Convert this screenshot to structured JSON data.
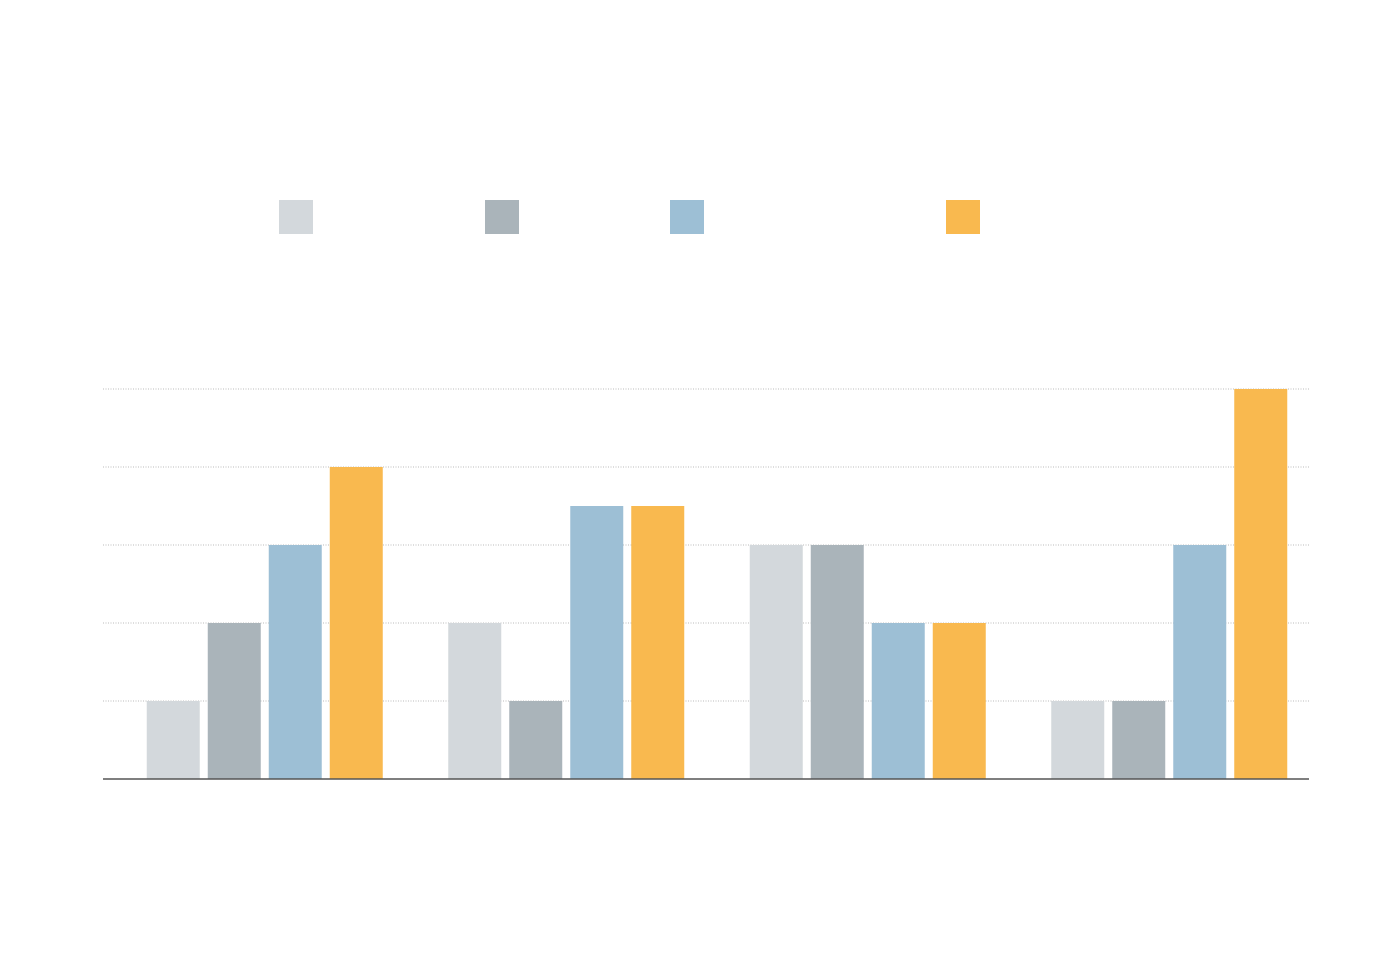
{
  "chart_data": {
    "type": "bar",
    "categories": [
      null,
      null,
      null,
      null
    ],
    "series": [
      {
        "color": "#d3d8dc",
        "values": [
          1,
          2,
          3,
          1
        ]
      },
      {
        "color": "#aab4ba",
        "values": [
          2,
          1,
          3,
          1
        ]
      },
      {
        "color": "#9dbfd5",
        "values": [
          3,
          3.5,
          2,
          3
        ]
      },
      {
        "color": "#f9b94f",
        "values": [
          4,
          3.5,
          2,
          5
        ]
      }
    ],
    "ylim": [
      0,
      5
    ],
    "yticks": [
      1,
      2,
      3,
      4,
      5
    ],
    "grid": true
  }
}
